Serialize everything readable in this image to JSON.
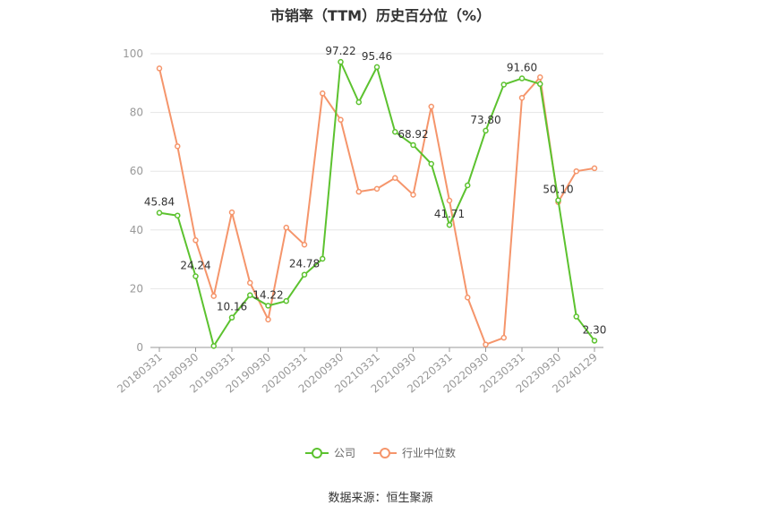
{
  "chart_data": {
    "type": "line",
    "title": "市销率（TTM）历史百分位（%）",
    "ylim": [
      0,
      100
    ],
    "yticks": [
      0,
      20,
      40,
      60,
      80,
      100
    ],
    "grid": true,
    "legend_position": "bottom",
    "x": [
      "20180331",
      "20180630",
      "20180930",
      "20181231",
      "20190331",
      "20190630",
      "20190930",
      "20191231",
      "20200331",
      "20200630",
      "20200930",
      "20201231",
      "20210331",
      "20210630",
      "20210930",
      "20211231",
      "20220331",
      "20220630",
      "20220930",
      "20221231",
      "20230331",
      "20230630",
      "20230930",
      "20231231",
      "20240129"
    ],
    "xtick_labels": [
      "20180331",
      "20180930",
      "20190331",
      "20190930",
      "20200331",
      "20200930",
      "20210331",
      "20210930",
      "20220331",
      "20220930",
      "20230331",
      "20230930",
      "20240129"
    ],
    "series": [
      {
        "name": "公司",
        "color": "#5cc22f",
        "values": [
          45.84,
          44.9,
          24.24,
          0.5,
          10.16,
          17.8,
          14.22,
          15.8,
          24.78,
          30.2,
          97.22,
          83.5,
          95.46,
          73.4,
          68.92,
          62.5,
          41.71,
          55.2,
          73.8,
          89.5,
          91.6,
          89.7,
          50.1,
          10.5,
          2.3
        ],
        "labels": {
          "0": "45.84",
          "2": "24.24",
          "4": "10.16",
          "6": "14.22",
          "8": "24.78",
          "10": "97.22",
          "12": "95.46",
          "14": "68.92",
          "16": "41.71",
          "18": "73.80",
          "20": "91.60",
          "22": "50.10",
          "24": "2.30"
        }
      },
      {
        "name": "行业中位数",
        "color": "#f5956b",
        "values": [
          95.0,
          68.5,
          36.5,
          17.5,
          46.0,
          22.0,
          9.5,
          40.8,
          35.0,
          86.5,
          77.5,
          53.0,
          54.0,
          57.7,
          52.0,
          82.0,
          50.0,
          17.0,
          1.0,
          3.3,
          85.0,
          92.0,
          49.5,
          60.0,
          61.0
        ]
      }
    ]
  },
  "source": "数据来源：恒生聚源"
}
